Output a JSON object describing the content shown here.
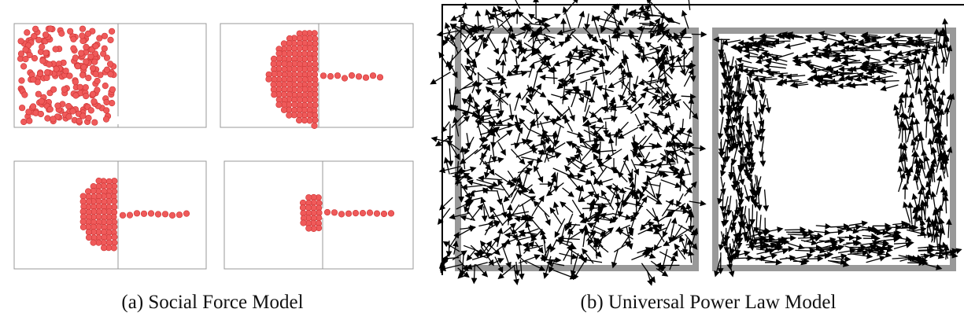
{
  "subfigures": [
    {
      "caption": "(a) Social Force Model"
    },
    {
      "caption": "(b) Universal Power Law Model"
    }
  ]
}
